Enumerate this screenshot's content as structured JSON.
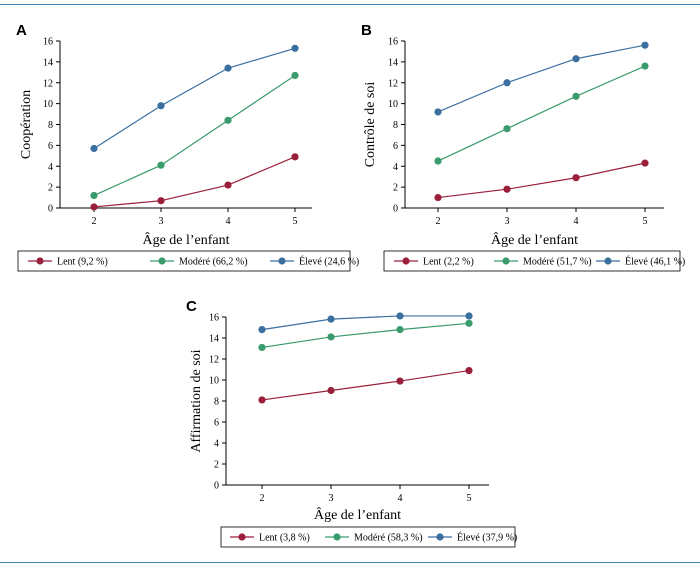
{
  "chart_data": [
    {
      "type": "line",
      "panel": "A",
      "x": [
        2,
        3,
        4,
        5
      ],
      "xlabel": "Âge de l’enfant",
      "ylabel": "Coopération",
      "ylim": [
        0,
        16
      ],
      "yticks": [
        0,
        2,
        4,
        6,
        8,
        10,
        12,
        14,
        16
      ],
      "series": [
        {
          "name": "Lent (9,2 %)",
          "color": "#9a1f3b",
          "values": [
            0.1,
            0.7,
            2.2,
            4.9
          ]
        },
        {
          "name": "Modéré (66,2 %)",
          "color": "#3a9b6c",
          "values": [
            1.2,
            4.1,
            8.4,
            12.7
          ]
        },
        {
          "name": "Élevé (24,6 %)",
          "color": "#3a6fa0",
          "values": [
            5.7,
            9.8,
            13.4,
            15.3
          ]
        }
      ]
    },
    {
      "type": "line",
      "panel": "B",
      "x": [
        2,
        3,
        4,
        5
      ],
      "xlabel": "Âge de l’enfant",
      "ylabel": "Contrôle de soi",
      "ylim": [
        0,
        16
      ],
      "yticks": [
        0,
        2,
        4,
        6,
        8,
        10,
        12,
        14,
        16
      ],
      "series": [
        {
          "name": "Lent (2,2 %)",
          "color": "#9a1f3b",
          "values": [
            1.0,
            1.8,
            2.9,
            4.3
          ]
        },
        {
          "name": "Modéré (51,7 %)",
          "color": "#3a9b6c",
          "values": [
            4.5,
            7.6,
            10.7,
            13.6
          ]
        },
        {
          "name": "Élevé (46,1 %)",
          "color": "#3a6fa0",
          "values": [
            9.2,
            12.0,
            14.3,
            15.6
          ]
        }
      ]
    },
    {
      "type": "line",
      "panel": "C",
      "x": [
        2,
        3,
        4,
        5
      ],
      "xlabel": "Âge de l’enfant",
      "ylabel": "Affirmation de soi",
      "ylim": [
        0,
        16
      ],
      "yticks": [
        0,
        2,
        4,
        6,
        8,
        10,
        12,
        14,
        16
      ],
      "series": [
        {
          "name": "Lent (3,8 %)",
          "color": "#9a1f3b",
          "values": [
            8.1,
            9.0,
            9.9,
            10.9
          ]
        },
        {
          "name": "Modéré (58,3 %)",
          "color": "#3a9b6c",
          "values": [
            13.1,
            14.1,
            14.8,
            15.4
          ]
        },
        {
          "name": "Élevé (37,9 %)",
          "color": "#3a6fa0",
          "values": [
            14.8,
            15.8,
            16.1,
            16.1
          ]
        }
      ]
    }
  ]
}
